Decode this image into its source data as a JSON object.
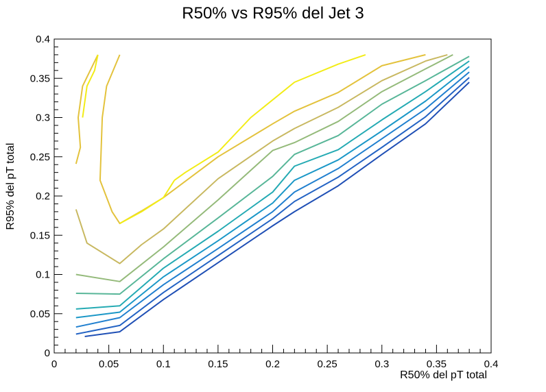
{
  "chart_data": {
    "type": "line",
    "title": "R50% vs R95% del Jet 3",
    "xlabel": "R50% del pT total",
    "ylabel": "R95% del pT total",
    "xlim": [
      0,
      0.4
    ],
    "ylim": [
      0,
      0.4
    ],
    "x_ticks": [
      "0",
      "0.05",
      "0.1",
      "0.15",
      "0.2",
      "0.25",
      "0.3",
      "0.35",
      "0.4"
    ],
    "y_ticks": [
      "0",
      "0.05",
      "0.1",
      "0.15",
      "0.2",
      "0.25",
      "0.3",
      "0.35",
      "0.4"
    ],
    "grid": false,
    "legend": "none",
    "contour_levels": [
      {
        "color": "#1f4fb5",
        "points": [
          [
            0.028,
            0.021
          ],
          [
            0.06,
            0.027
          ],
          [
            0.1,
            0.068
          ],
          [
            0.15,
            0.115
          ],
          [
            0.2,
            0.162
          ],
          [
            0.22,
            0.18
          ],
          [
            0.26,
            0.213
          ],
          [
            0.3,
            0.253
          ],
          [
            0.34,
            0.292
          ],
          [
            0.38,
            0.345
          ]
        ]
      },
      {
        "color": "#2363c4",
        "points": [
          [
            0.02,
            0.024
          ],
          [
            0.06,
            0.035
          ],
          [
            0.1,
            0.077
          ],
          [
            0.15,
            0.124
          ],
          [
            0.2,
            0.171
          ],
          [
            0.22,
            0.193
          ],
          [
            0.26,
            0.224
          ],
          [
            0.3,
            0.262
          ],
          [
            0.34,
            0.301
          ],
          [
            0.38,
            0.351
          ]
        ]
      },
      {
        "color": "#1f7fcf",
        "points": [
          [
            0.02,
            0.033
          ],
          [
            0.06,
            0.045
          ],
          [
            0.1,
            0.087
          ],
          [
            0.15,
            0.133
          ],
          [
            0.2,
            0.18
          ],
          [
            0.22,
            0.205
          ],
          [
            0.26,
            0.235
          ],
          [
            0.3,
            0.273
          ],
          [
            0.34,
            0.311
          ],
          [
            0.38,
            0.358
          ]
        ]
      },
      {
        "color": "#1a97c7",
        "points": [
          [
            0.02,
            0.045
          ],
          [
            0.06,
            0.052
          ],
          [
            0.1,
            0.097
          ],
          [
            0.15,
            0.143
          ],
          [
            0.2,
            0.191
          ],
          [
            0.22,
            0.22
          ],
          [
            0.26,
            0.246
          ],
          [
            0.3,
            0.283
          ],
          [
            0.34,
            0.321
          ],
          [
            0.38,
            0.365
          ]
        ]
      },
      {
        "color": "#24aab3",
        "points": [
          [
            0.02,
            0.056
          ],
          [
            0.06,
            0.06
          ],
          [
            0.1,
            0.108
          ],
          [
            0.15,
            0.155
          ],
          [
            0.2,
            0.205
          ],
          [
            0.22,
            0.238
          ],
          [
            0.26,
            0.259
          ],
          [
            0.3,
            0.297
          ],
          [
            0.34,
            0.333
          ],
          [
            0.38,
            0.372
          ]
        ]
      },
      {
        "color": "#58b698",
        "points": [
          [
            0.02,
            0.076
          ],
          [
            0.06,
            0.075
          ],
          [
            0.1,
            0.12
          ],
          [
            0.15,
            0.172
          ],
          [
            0.2,
            0.225
          ],
          [
            0.22,
            0.253
          ],
          [
            0.26,
            0.277
          ],
          [
            0.3,
            0.317
          ],
          [
            0.34,
            0.347
          ],
          [
            0.38,
            0.378
          ]
        ]
      },
      {
        "color": "#94ba7a",
        "points": [
          [
            0.02,
            0.1
          ],
          [
            0.06,
            0.091
          ],
          [
            0.1,
            0.135
          ],
          [
            0.15,
            0.195
          ],
          [
            0.2,
            0.258
          ],
          [
            0.22,
            0.268
          ],
          [
            0.26,
            0.295
          ],
          [
            0.3,
            0.333
          ],
          [
            0.34,
            0.362
          ],
          [
            0.365,
            0.38
          ]
        ]
      },
      {
        "color": "#c8b860",
        "points": [
          [
            0.02,
            0.183
          ],
          [
            0.03,
            0.14
          ],
          [
            0.06,
            0.114
          ],
          [
            0.08,
            0.138
          ],
          [
            0.1,
            0.158
          ],
          [
            0.15,
            0.222
          ],
          [
            0.2,
            0.27
          ],
          [
            0.22,
            0.286
          ],
          [
            0.26,
            0.313
          ],
          [
            0.3,
            0.347
          ],
          [
            0.34,
            0.372
          ],
          [
            0.36,
            0.38
          ]
        ]
      },
      {
        "color": "#e3c23c",
        "points": [
          [
            0.02,
            0.241
          ],
          [
            0.024,
            0.262
          ],
          [
            0.022,
            0.3
          ],
          [
            0.026,
            0.34
          ],
          [
            0.04,
            0.38
          ]
        ]
      },
      {
        "color": "#e3c23c",
        "points": [
          [
            0.06,
            0.38
          ],
          [
            0.048,
            0.34
          ],
          [
            0.044,
            0.3
          ],
          [
            0.042,
            0.22
          ],
          [
            0.053,
            0.18
          ],
          [
            0.06,
            0.165
          ],
          [
            0.08,
            0.181
          ],
          [
            0.1,
            0.198
          ],
          [
            0.15,
            0.25
          ],
          [
            0.2,
            0.292
          ],
          [
            0.22,
            0.308
          ],
          [
            0.26,
            0.332
          ],
          [
            0.3,
            0.366
          ],
          [
            0.34,
            0.38
          ]
        ]
      },
      {
        "color": "#f2ec16",
        "points": [
          [
            0.04,
            0.38
          ],
          [
            0.037,
            0.36
          ],
          [
            0.03,
            0.34
          ],
          [
            0.026,
            0.3
          ]
        ]
      },
      {
        "color": "#f2ec16",
        "points": [
          [
            0.11,
            0.22
          ],
          [
            0.12,
            0.23
          ],
          [
            0.15,
            0.256
          ],
          [
            0.18,
            0.3
          ],
          [
            0.22,
            0.345
          ],
          [
            0.26,
            0.368
          ],
          [
            0.285,
            0.38
          ]
        ]
      },
      {
        "color": "#f2ec16",
        "points": [
          [
            0.06,
            0.165
          ],
          [
            0.08,
            0.18
          ],
          [
            0.1,
            0.198
          ],
          [
            0.11,
            0.22
          ]
        ]
      }
    ]
  }
}
